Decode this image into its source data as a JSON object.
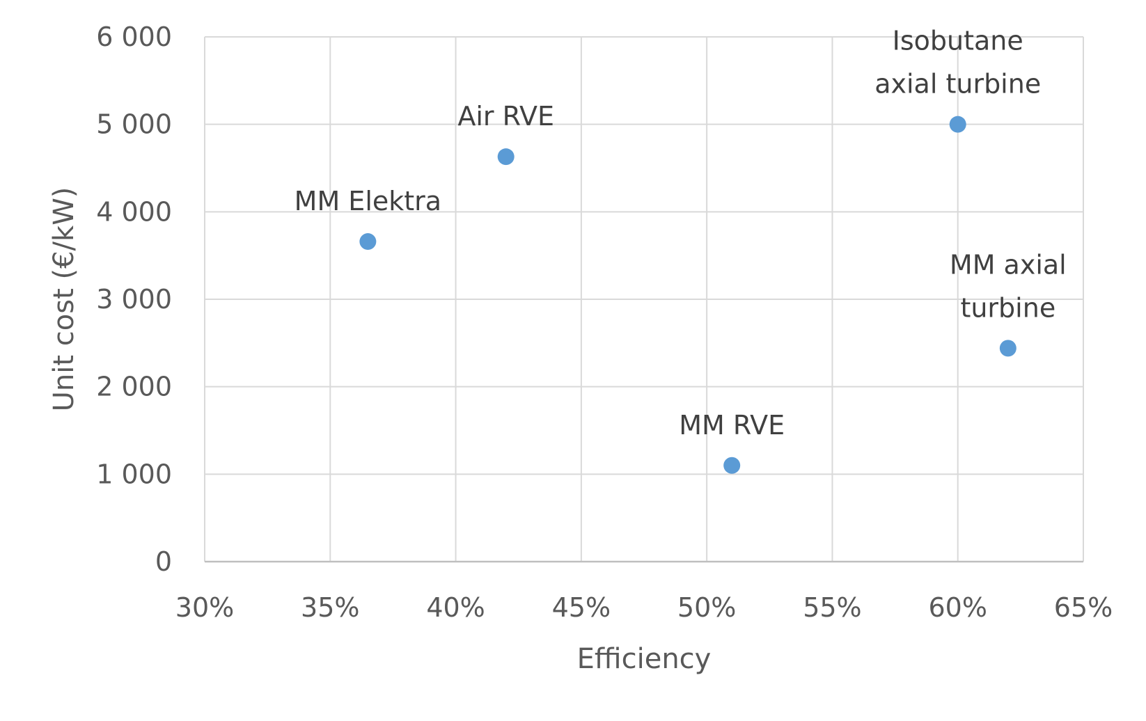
{
  "chart_data": {
    "type": "scatter",
    "xlabel": "Efficiency",
    "ylabel": "Unit cost (€/kW)",
    "xlim": [
      0.3,
      0.65
    ],
    "ylim": [
      0,
      6000
    ],
    "x_ticks": [
      {
        "value": 0.3,
        "label": "30%"
      },
      {
        "value": 0.35,
        "label": "35%"
      },
      {
        "value": 0.4,
        "label": "40%"
      },
      {
        "value": 0.45,
        "label": "45%"
      },
      {
        "value": 0.5,
        "label": "50%"
      },
      {
        "value": 0.55,
        "label": "55%"
      },
      {
        "value": 0.6,
        "label": "60%"
      },
      {
        "value": 0.65,
        "label": "65%"
      }
    ],
    "y_ticks": [
      {
        "value": 0,
        "label": "0"
      },
      {
        "value": 1000,
        "label": "1 000"
      },
      {
        "value": 2000,
        "label": "2 000"
      },
      {
        "value": 3000,
        "label": "3 000"
      },
      {
        "value": 4000,
        "label": "4 000"
      },
      {
        "value": 5000,
        "label": "5 000"
      },
      {
        "value": 6000,
        "label": "6 000"
      }
    ],
    "grid": true,
    "legend": "none",
    "marker_color": "#5b9bd5",
    "gridline_color": "#d9d9d9",
    "points": [
      {
        "label": [
          "MM Elektra"
        ],
        "x": 0.365,
        "y": 3660
      },
      {
        "label": [
          "Air RVE"
        ],
        "x": 0.42,
        "y": 4630
      },
      {
        "label": [
          "MM RVE"
        ],
        "x": 0.51,
        "y": 1100
      },
      {
        "label": [
          "Isobutane",
          "axial turbine"
        ],
        "x": 0.6,
        "y": 5000
      },
      {
        "label": [
          "MM axial",
          "turbine"
        ],
        "x": 0.62,
        "y": 2440
      }
    ]
  }
}
